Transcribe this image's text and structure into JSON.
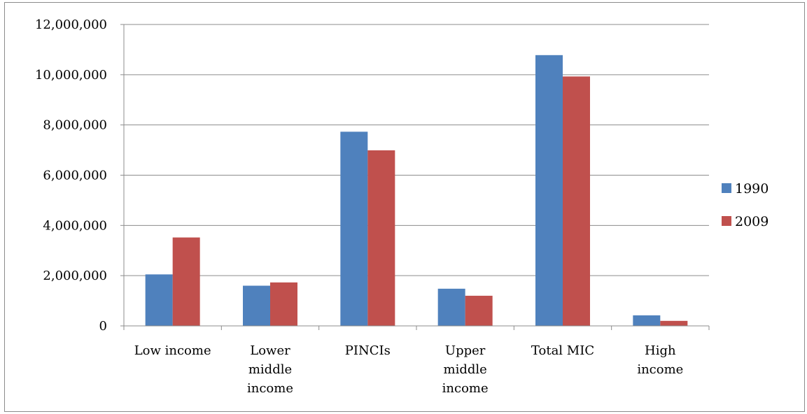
{
  "chart_data": {
    "type": "bar",
    "categories": [
      [
        "Low income"
      ],
      [
        "Lower",
        "middle",
        "income"
      ],
      [
        "PINCIs"
      ],
      [
        "Upper",
        "middle",
        "income"
      ],
      [
        "Total MIC"
      ],
      [
        "High",
        "income"
      ]
    ],
    "series": [
      {
        "name": "1990",
        "color": "#4f81bd",
        "values": [
          2050000,
          1600000,
          7730000,
          1480000,
          10780000,
          420000
        ]
      },
      {
        "name": "2009",
        "color": "#c0504d",
        "values": [
          3520000,
          1730000,
          6990000,
          1200000,
          9930000,
          200000
        ]
      }
    ],
    "y_ticks": [
      "0",
      "2,000,000",
      "4,000,000",
      "6,000,000",
      "8,000,000",
      "10,000,000",
      "12,000,000"
    ],
    "ylim": [
      0,
      12000000
    ],
    "grid": true,
    "legend_position": "right",
    "title": "",
    "xlabel": "",
    "ylabel": ""
  }
}
